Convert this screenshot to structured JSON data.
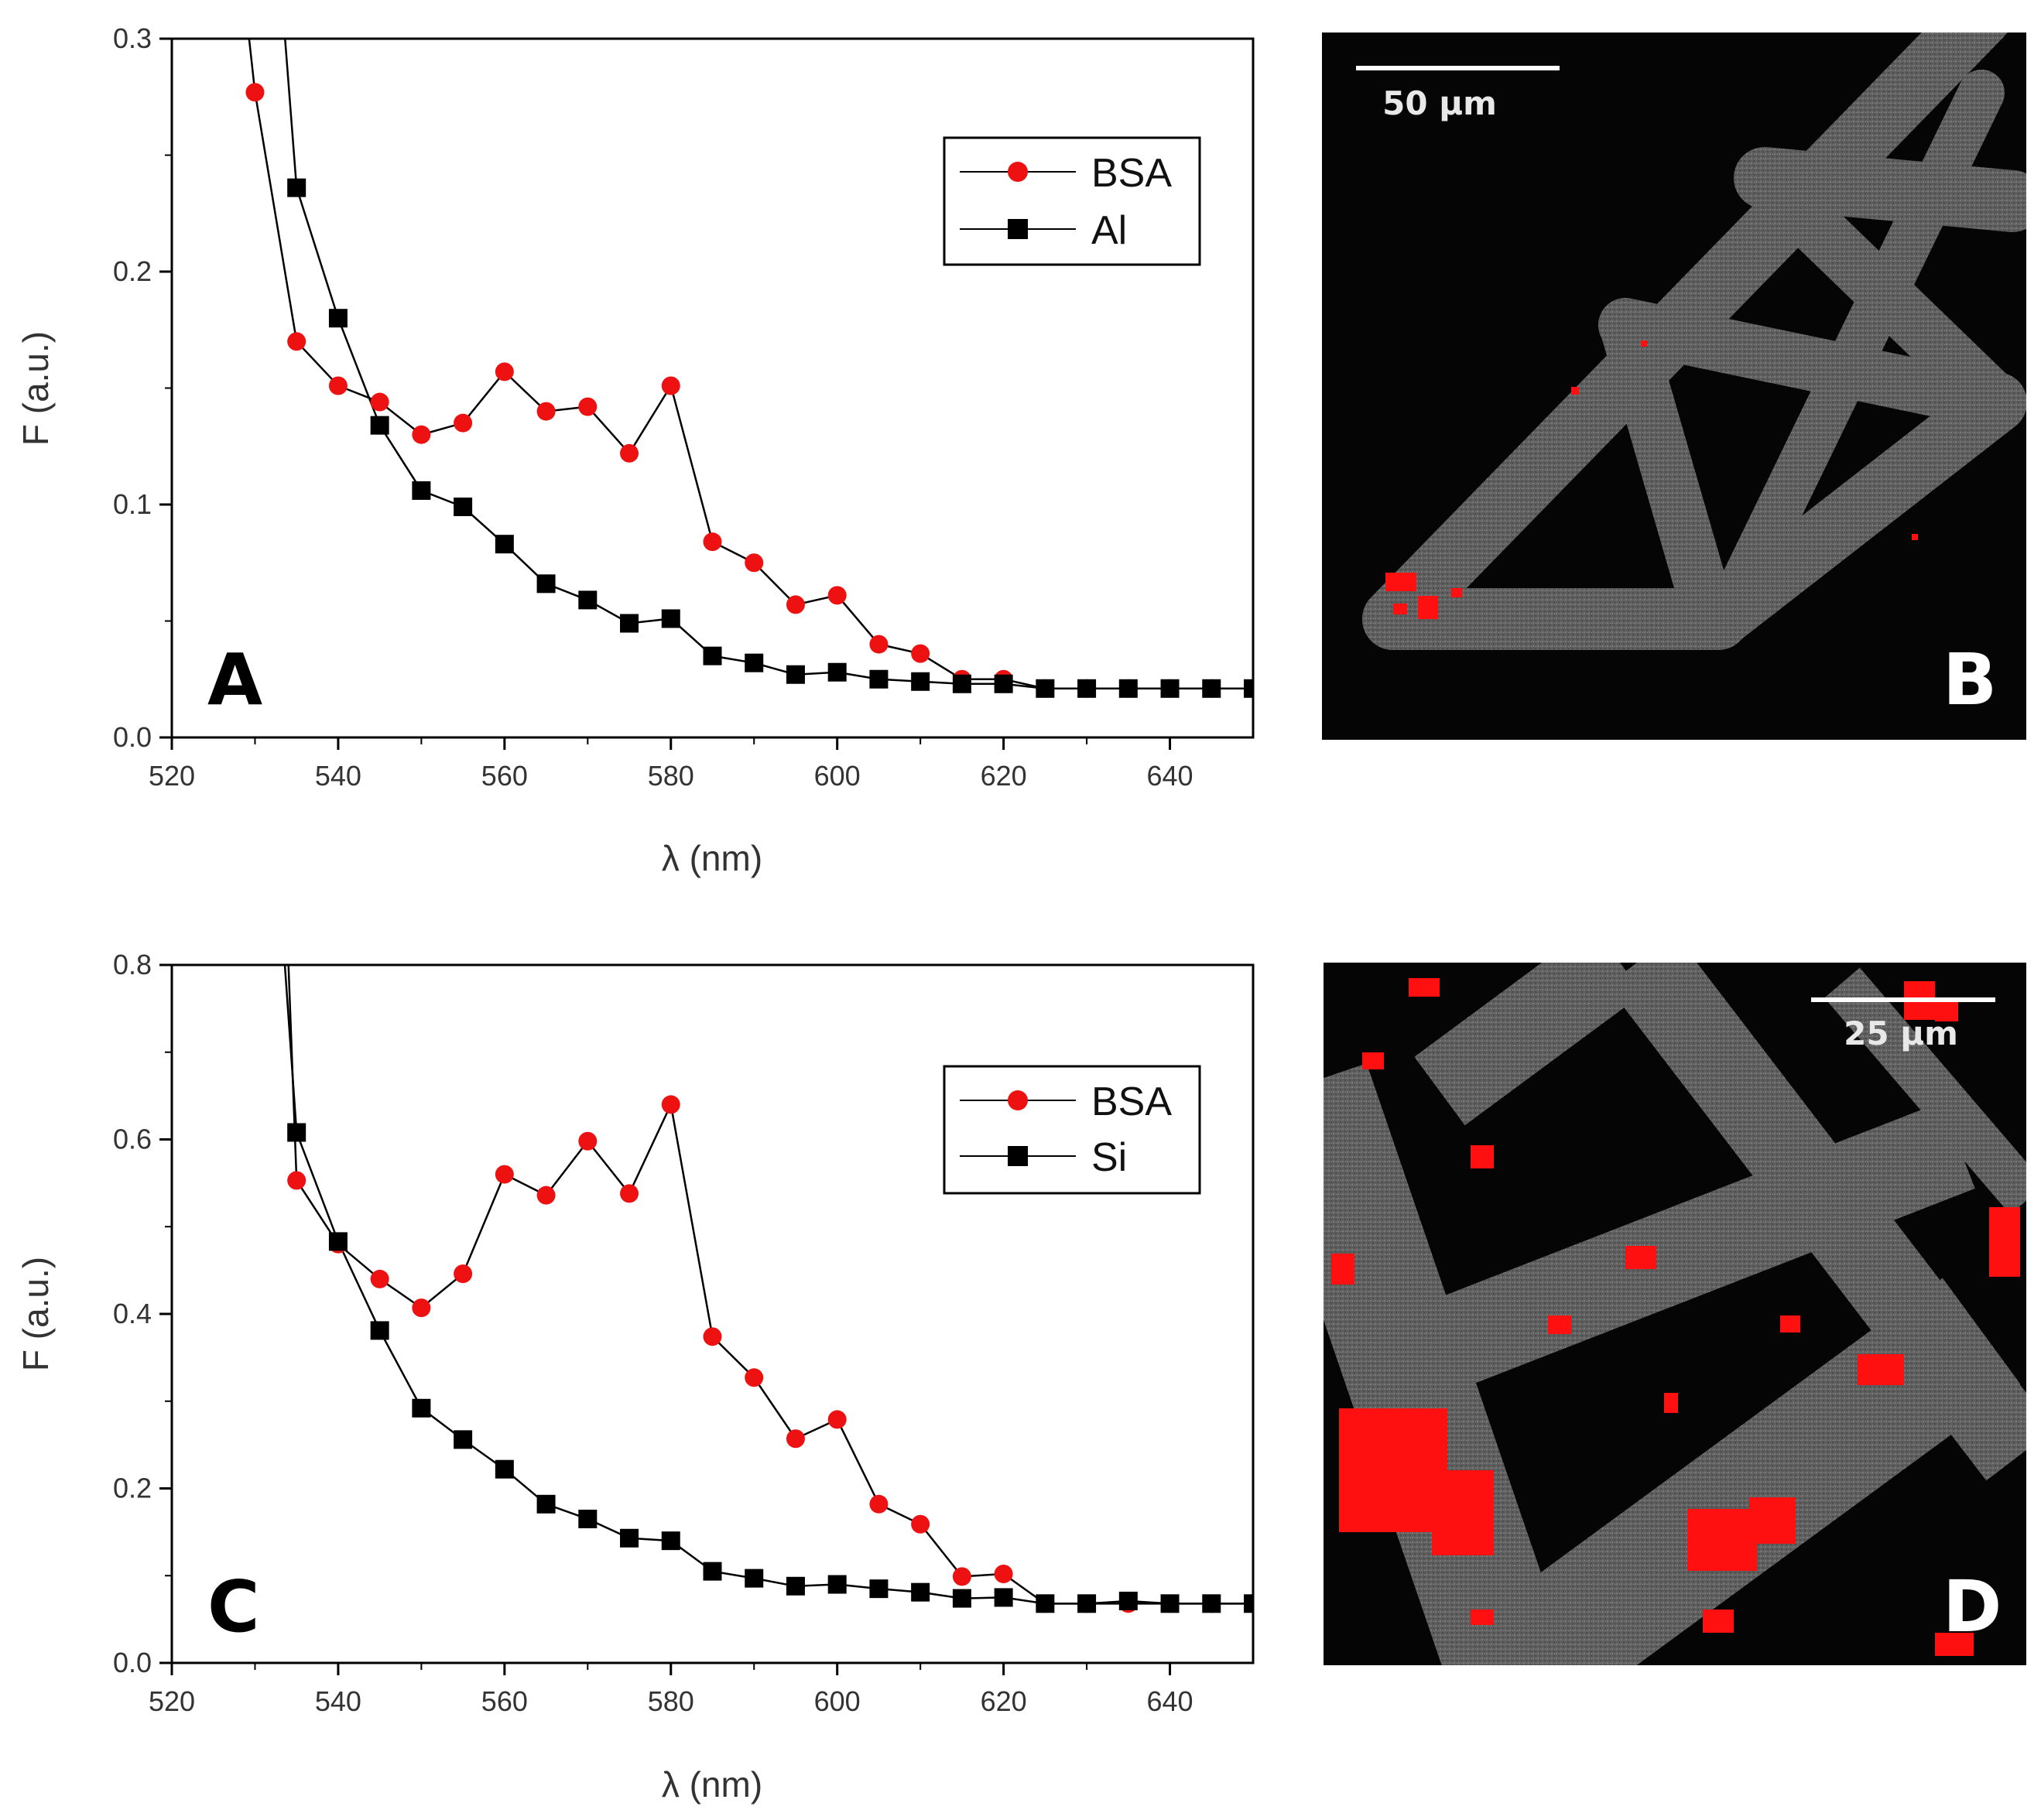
{
  "colors": {
    "bsa": "#ee1111",
    "reference": "#000000",
    "axis": "#000000",
    "micro_bg": "#050505",
    "micro_gray": "#6a6a6a",
    "micro_red": "#ff1010"
  },
  "chart_data": [
    {
      "panel": "A",
      "type": "line",
      "xlabel": "λ (nm)",
      "ylabel": "F (a.u.)",
      "xlim": [
        520,
        650
      ],
      "ylim": [
        0.0,
        0.3
      ],
      "xticks": [
        "520",
        "540",
        "560",
        "580",
        "600",
        "620",
        "640"
      ],
      "yticks": [
        "0.0",
        "0.1",
        "0.2",
        "0.3"
      ],
      "legend_position": "top-right",
      "series": [
        {
          "name": "BSA",
          "marker": "circle",
          "color": "#ee1111",
          "x": [
            530,
            535,
            540,
            545,
            550,
            555,
            560,
            565,
            570,
            575,
            580,
            585,
            590,
            595,
            600,
            605,
            610,
            615,
            620,
            625,
            630,
            635,
            640,
            645,
            650
          ],
          "y": [
            0.277,
            0.17,
            0.151,
            0.144,
            0.13,
            0.135,
            0.157,
            0.14,
            0.142,
            0.122,
            0.151,
            0.084,
            0.075,
            0.057,
            0.061,
            0.04,
            0.036,
            0.025,
            0.025,
            0.021,
            0.021,
            0.021,
            0.021,
            0.021,
            0.021
          ]
        },
        {
          "name": "Al",
          "marker": "square",
          "color": "#000000",
          "x": [
            535,
            540,
            545,
            550,
            555,
            560,
            565,
            570,
            575,
            580,
            585,
            590,
            595,
            600,
            605,
            610,
            615,
            620,
            625,
            630,
            635,
            640,
            645,
            650
          ],
          "y": [
            0.236,
            0.18,
            0.134,
            0.106,
            0.099,
            0.083,
            0.066,
            0.059,
            0.049,
            0.051,
            0.035,
            0.032,
            0.027,
            0.028,
            0.025,
            0.024,
            0.023,
            0.023,
            0.021,
            0.021,
            0.021,
            0.021,
            0.021,
            0.021
          ]
        }
      ]
    },
    {
      "panel": "C",
      "type": "line",
      "xlabel": "λ (nm)",
      "ylabel": "F (a.u.)",
      "xlim": [
        520,
        650
      ],
      "ylim": [
        0.0,
        0.8
      ],
      "xticks": [
        "520",
        "540",
        "560",
        "580",
        "600",
        "620",
        "640"
      ],
      "yticks": [
        "0.0",
        "0.2",
        "0.4",
        "0.6",
        "0.8"
      ],
      "legend_position": "top-right",
      "series": [
        {
          "name": "BSA",
          "marker": "circle",
          "color": "#ee1111",
          "x": [
            535,
            540,
            545,
            550,
            555,
            560,
            565,
            570,
            575,
            580,
            585,
            590,
            595,
            600,
            605,
            610,
            615,
            620,
            625,
            630,
            635,
            640,
            645,
            650
          ],
          "y": [
            0.553,
            0.48,
            0.44,
            0.407,
            0.446,
            0.56,
            0.536,
            0.598,
            0.538,
            0.64,
            0.374,
            0.327,
            0.257,
            0.279,
            0.182,
            0.159,
            0.099,
            0.102,
            0.068,
            0.068,
            0.068,
            0.068,
            0.068,
            0.068
          ]
        },
        {
          "name": "Si",
          "marker": "square",
          "color": "#000000",
          "x": [
            535,
            540,
            545,
            550,
            555,
            560,
            565,
            570,
            575,
            580,
            585,
            590,
            595,
            600,
            605,
            610,
            615,
            620,
            625,
            630,
            635,
            640,
            645,
            650
          ],
          "y": [
            0.608,
            0.483,
            0.381,
            0.292,
            0.256,
            0.222,
            0.182,
            0.165,
            0.143,
            0.14,
            0.105,
            0.097,
            0.088,
            0.09,
            0.085,
            0.081,
            0.074,
            0.075,
            0.068,
            0.068,
            0.071,
            0.068,
            0.068,
            0.068
          ]
        }
      ]
    }
  ],
  "panels": {
    "A_label": "A",
    "B_label": "B",
    "C_label": "C",
    "D_label": "D",
    "B_scale": "50 µm",
    "D_scale": "25 µm"
  }
}
